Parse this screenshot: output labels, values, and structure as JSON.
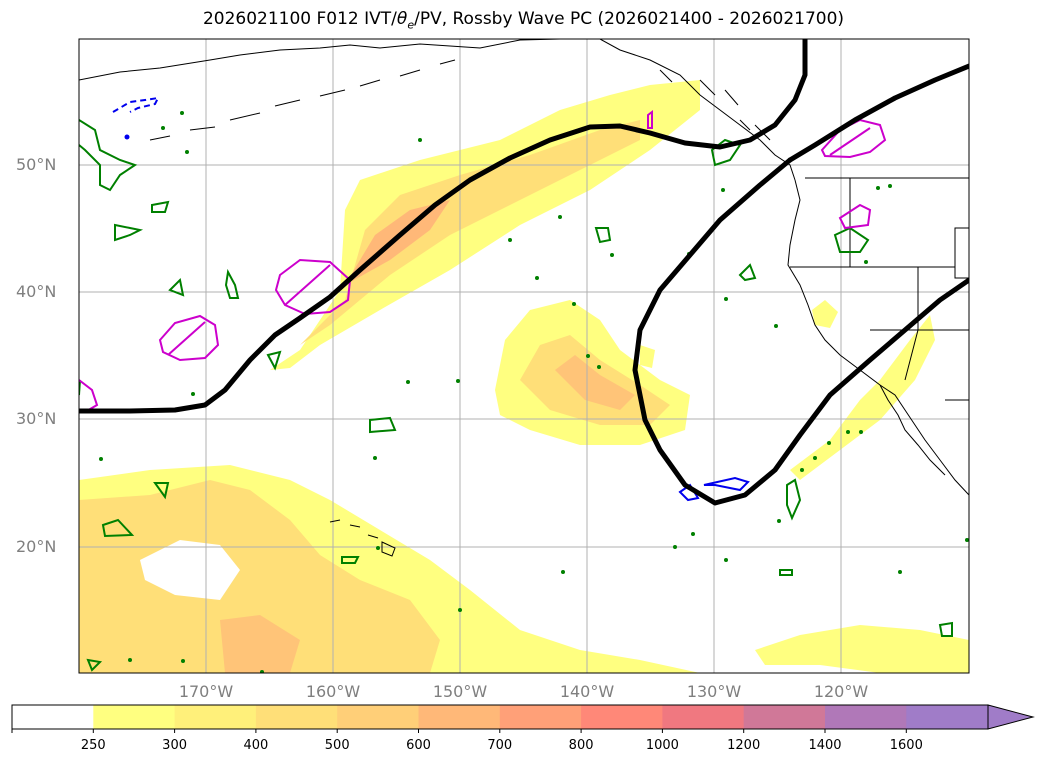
{
  "title": {
    "prefix": "2026021100 F012 IVT/",
    "theta": "θ",
    "theta_sub": "e",
    "suffix": "/PV, Rossby Wave PC (2026021400 - 2026021700)"
  },
  "lat_labels": [
    "50°N",
    "40°N",
    "30°N",
    "20°N"
  ],
  "lon_labels": [
    "170°W",
    "160°W",
    "150°W",
    "140°W",
    "130°W",
    "120°W"
  ],
  "colorbar": {
    "levels": [
      "250",
      "300",
      "400",
      "500",
      "600",
      "700",
      "800",
      "1000",
      "1200",
      "1400",
      "1600"
    ],
    "colors": [
      "#ffffff",
      "#ffff80",
      "#fff07a",
      "#ffdf78",
      "#ffcf78",
      "#ffb878",
      "#ffa078",
      "#ff8878",
      "#f07880",
      "#d07898",
      "#b078b8",
      "#a07cc8"
    ]
  },
  "contour_colors": {
    "rossby_wave": "#000000",
    "pv_high": "#cc00cc",
    "pv_low": "#0000ee",
    "theta_e": "#008000",
    "coastline": "#000000"
  }
}
